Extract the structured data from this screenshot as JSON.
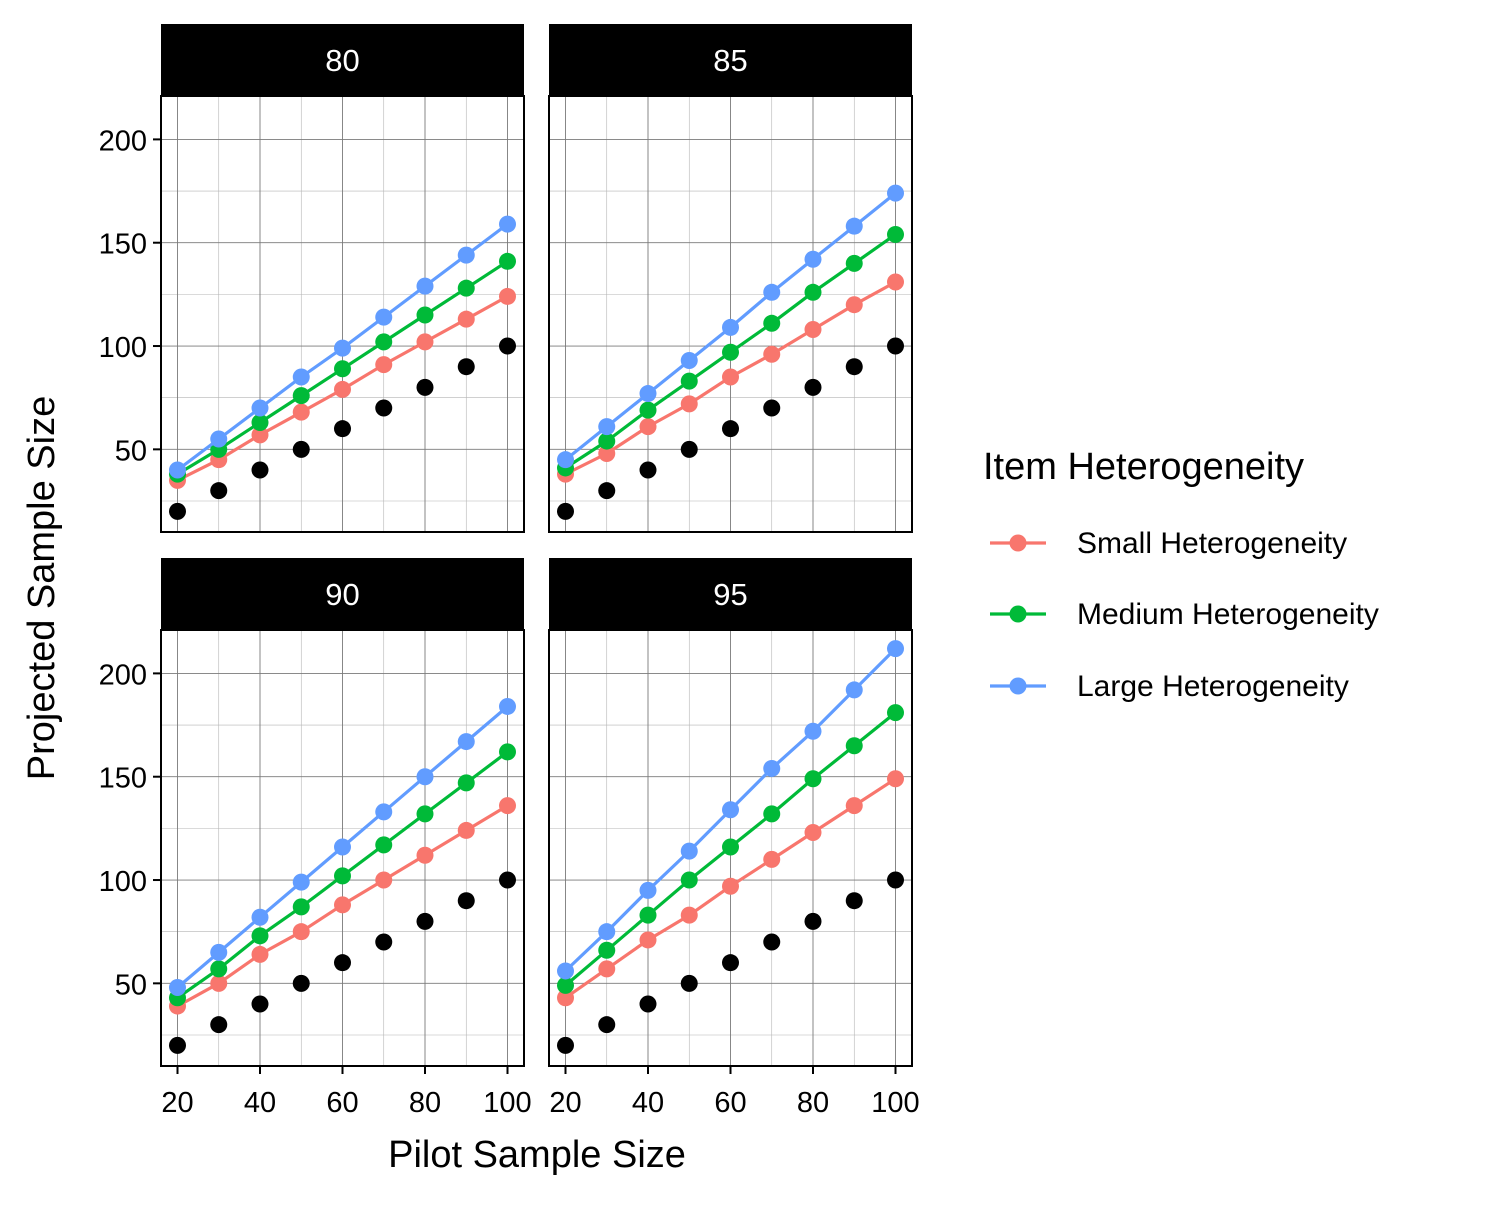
{
  "chart_data": {
    "type": "line",
    "xlabel": "Pilot Sample Size",
    "ylabel": "Projected Sample Size",
    "x": [
      20,
      30,
      40,
      50,
      60,
      70,
      80,
      90,
      100
    ],
    "x_ticks": [
      "20",
      "40",
      "60",
      "80",
      "100"
    ],
    "y_ticks": [
      "50",
      "100",
      "150",
      "200"
    ],
    "xlim": [
      16,
      104
    ],
    "ylim": [
      10,
      221
    ],
    "grid": true,
    "legend_position": "right",
    "legend": {
      "title": "Item Heterogeneity",
      "entries": [
        {
          "name": "Small Heterogeneity",
          "color": "#F8766D"
        },
        {
          "name": "Medium Heterogeneity",
          "color": "#00BA38"
        },
        {
          "name": "Large Heterogeneity",
          "color": "#619CFF"
        }
      ]
    },
    "reference_points": {
      "color": "#000000",
      "values": [
        20,
        30,
        40,
        50,
        60,
        70,
        80,
        90,
        100
      ]
    },
    "facets": [
      {
        "label": "80",
        "series": [
          {
            "name": "Small Heterogeneity",
            "color": "#F8766D",
            "values": [
              35,
              45,
              57,
              68,
              79,
              91,
              102,
              113,
              124
            ]
          },
          {
            "name": "Medium Heterogeneity",
            "color": "#00BA38",
            "values": [
              38,
              50,
              63,
              76,
              89,
              102,
              115,
              128,
              141
            ]
          },
          {
            "name": "Large Heterogeneity",
            "color": "#619CFF",
            "values": [
              40,
              55,
              70,
              85,
              99,
              114,
              129,
              144,
              159
            ]
          }
        ]
      },
      {
        "label": "85",
        "series": [
          {
            "name": "Small Heterogeneity",
            "color": "#F8766D",
            "values": [
              38,
              48,
              61,
              72,
              85,
              96,
              108,
              120,
              131
            ]
          },
          {
            "name": "Medium Heterogeneity",
            "color": "#00BA38",
            "values": [
              41,
              54,
              69,
              83,
              97,
              111,
              126,
              140,
              154
            ]
          },
          {
            "name": "Large Heterogeneity",
            "color": "#619CFF",
            "values": [
              45,
              61,
              77,
              93,
              109,
              126,
              142,
              158,
              174
            ]
          }
        ]
      },
      {
        "label": "90",
        "series": [
          {
            "name": "Small Heterogeneity",
            "color": "#F8766D",
            "values": [
              39,
              50,
              64,
              75,
              88,
              100,
              112,
              124,
              136
            ]
          },
          {
            "name": "Medium Heterogeneity",
            "color": "#00BA38",
            "values": [
              43,
              57,
              73,
              87,
              102,
              117,
              132,
              147,
              162
            ]
          },
          {
            "name": "Large Heterogeneity",
            "color": "#619CFF",
            "values": [
              48,
              65,
              82,
              99,
              116,
              133,
              150,
              167,
              184
            ]
          }
        ]
      },
      {
        "label": "95",
        "series": [
          {
            "name": "Small Heterogeneity",
            "color": "#F8766D",
            "values": [
              43,
              57,
              71,
              83,
              97,
              110,
              123,
              136,
              149
            ]
          },
          {
            "name": "Medium Heterogeneity",
            "color": "#00BA38",
            "values": [
              49,
              66,
              83,
              100,
              116,
              132,
              149,
              165,
              181
            ]
          },
          {
            "name": "Large Heterogeneity",
            "color": "#619CFF",
            "values": [
              56,
              75,
              95,
              114,
              134,
              154,
              172,
              192,
              212
            ]
          }
        ]
      }
    ]
  }
}
